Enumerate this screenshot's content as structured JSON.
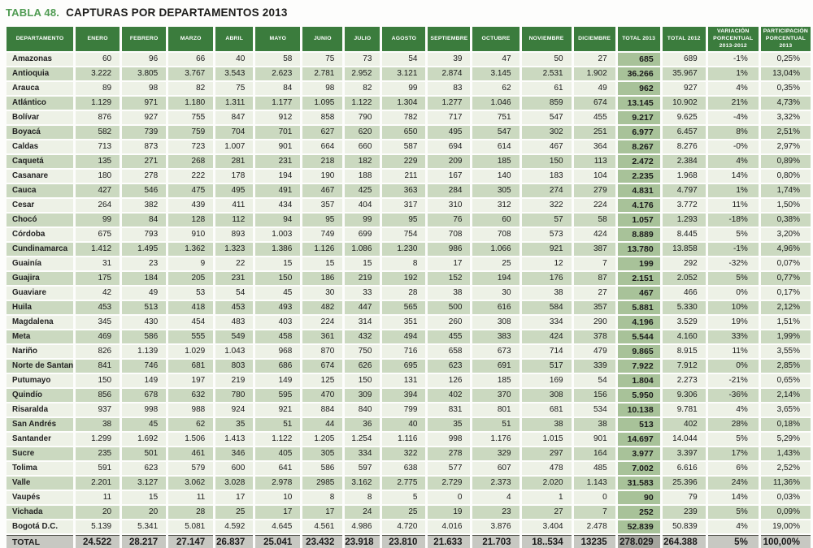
{
  "title": {
    "label": "TABLA 48.",
    "text": "CAPTURAS POR DEPARTAMENTOS 2013"
  },
  "colors": {
    "header_green": "#3b7c3d",
    "title_green": "#4f9b52",
    "row_light": "#edf1e6",
    "row_dark": "#cbd9c0",
    "total2013_col": "#a8c299",
    "total_row_bg": "#c7c8c2",
    "total_row_total2013_bg": "#a3a49d"
  },
  "table": {
    "columns": [
      "DEPARTAMENTO",
      "ENERO",
      "FEBRERO",
      "MARZO",
      "ABRIL",
      "MAYO",
      "JUNIO",
      "JULIO",
      "AGOSTO",
      "SEPTIEMBRE",
      "OCTUBRE",
      "NOVIEMBRE",
      "DICIEMBRE",
      "TOTAL 2013",
      "TOTAL 2012",
      "VARIACIÓN PORCENTUAL 2013-2012",
      "PARTICIPACIÓN PORCENTUAL 2013"
    ],
    "rows": [
      {
        "name": "Amazonas",
        "values": [
          "60",
          "96",
          "66",
          "40",
          "58",
          "75",
          "73",
          "54",
          "39",
          "47",
          "50",
          "27",
          "685",
          "689",
          "-1%",
          "0,25%"
        ]
      },
      {
        "name": "Antioquia",
        "values": [
          "3.222",
          "3.805",
          "3.767",
          "3.543",
          "2.623",
          "2.781",
          "2.952",
          "3.121",
          "2.874",
          "3.145",
          "2.531",
          "1.902",
          "36.266",
          "35.967",
          "1%",
          "13,04%"
        ]
      },
      {
        "name": "Arauca",
        "values": [
          "89",
          "98",
          "82",
          "75",
          "84",
          "98",
          "82",
          "99",
          "83",
          "62",
          "61",
          "49",
          "962",
          "927",
          "4%",
          "0,35%"
        ]
      },
      {
        "name": "Atlántico",
        "values": [
          "1.129",
          "971",
          "1.180",
          "1.311",
          "1.177",
          "1.095",
          "1.122",
          "1.304",
          "1.277",
          "1.046",
          "859",
          "674",
          "13.145",
          "10.902",
          "21%",
          "4,73%"
        ]
      },
      {
        "name": "Bolívar",
        "values": [
          "876",
          "927",
          "755",
          "847",
          "912",
          "858",
          "790",
          "782",
          "717",
          "751",
          "547",
          "455",
          "9.217",
          "9.625",
          "-4%",
          "3,32%"
        ]
      },
      {
        "name": "Boyacá",
        "values": [
          "582",
          "739",
          "759",
          "704",
          "701",
          "627",
          "620",
          "650",
          "495",
          "547",
          "302",
          "251",
          "6.977",
          "6.457",
          "8%",
          "2,51%"
        ]
      },
      {
        "name": "Caldas",
        "values": [
          "713",
          "873",
          "723",
          "1.007",
          "901",
          "664",
          "660",
          "587",
          "694",
          "614",
          "467",
          "364",
          "8.267",
          "8.276",
          "-0%",
          "2,97%"
        ]
      },
      {
        "name": "Caquetá",
        "values": [
          "135",
          "271",
          "268",
          "281",
          "231",
          "218",
          "182",
          "229",
          "209",
          "185",
          "150",
          "113",
          "2.472",
          "2.384",
          "4%",
          "0,89%"
        ]
      },
      {
        "name": "Casanare",
        "values": [
          "180",
          "278",
          "222",
          "178",
          "194",
          "190",
          "188",
          "211",
          "167",
          "140",
          "183",
          "104",
          "2.235",
          "1.968",
          "14%",
          "0,80%"
        ]
      },
      {
        "name": "Cauca",
        "values": [
          "427",
          "546",
          "475",
          "495",
          "491",
          "467",
          "425",
          "363",
          "284",
          "305",
          "274",
          "279",
          "4.831",
          "4.797",
          "1%",
          "1,74%"
        ]
      },
      {
        "name": "Cesar",
        "values": [
          "264",
          "382",
          "439",
          "411",
          "434",
          "357",
          "404",
          "317",
          "310",
          "312",
          "322",
          "224",
          "4.176",
          "3.772",
          "11%",
          "1,50%"
        ]
      },
      {
        "name": "Chocó",
        "values": [
          "99",
          "84",
          "128",
          "112",
          "94",
          "95",
          "99",
          "95",
          "76",
          "60",
          "57",
          "58",
          "1.057",
          "1.293",
          "-18%",
          "0,38%"
        ]
      },
      {
        "name": "Córdoba",
        "values": [
          "675",
          "793",
          "910",
          "893",
          "1.003",
          "749",
          "699",
          "754",
          "708",
          "708",
          "573",
          "424",
          "8.889",
          "8.445",
          "5%",
          "3,20%"
        ]
      },
      {
        "name": "Cundinamarca",
        "values": [
          "1.412",
          "1.495",
          "1.362",
          "1.323",
          "1.386",
          "1.126",
          "1.086",
          "1.230",
          "986",
          "1.066",
          "921",
          "387",
          "13.780",
          "13.858",
          "-1%",
          "4,96%"
        ]
      },
      {
        "name": "Guainía",
        "values": [
          "31",
          "23",
          "9",
          "22",
          "15",
          "15",
          "15",
          "8",
          "17",
          "25",
          "12",
          "7",
          "199",
          "292",
          "-32%",
          "0,07%"
        ]
      },
      {
        "name": "Guajira",
        "values": [
          "175",
          "184",
          "205",
          "231",
          "150",
          "186",
          "219",
          "192",
          "152",
          "194",
          "176",
          "87",
          "2.151",
          "2.052",
          "5%",
          "0,77%"
        ]
      },
      {
        "name": "Guaviare",
        "values": [
          "42",
          "49",
          "53",
          "54",
          "45",
          "30",
          "33",
          "28",
          "38",
          "30",
          "38",
          "27",
          "467",
          "466",
          "0%",
          "0,17%"
        ]
      },
      {
        "name": "Huila",
        "values": [
          "453",
          "513",
          "418",
          "453",
          "493",
          "482",
          "447",
          "565",
          "500",
          "616",
          "584",
          "357",
          "5.881",
          "5.330",
          "10%",
          "2,12%"
        ]
      },
      {
        "name": "Magdalena",
        "values": [
          "345",
          "430",
          "454",
          "483",
          "403",
          "224",
          "314",
          "351",
          "260",
          "308",
          "334",
          "290",
          "4.196",
          "3.529",
          "19%",
          "1,51%"
        ]
      },
      {
        "name": "Meta",
        "values": [
          "469",
          "586",
          "555",
          "549",
          "458",
          "361",
          "432",
          "494",
          "455",
          "383",
          "424",
          "378",
          "5.544",
          "4.160",
          "33%",
          "1,99%"
        ]
      },
      {
        "name": "Nariño",
        "values": [
          "826",
          "1.139",
          "1.029",
          "1.043",
          "968",
          "870",
          "750",
          "716",
          "658",
          "673",
          "714",
          "479",
          "9.865",
          "8.915",
          "11%",
          "3,55%"
        ]
      },
      {
        "name": "Norte de Santander",
        "values": [
          "841",
          "746",
          "681",
          "803",
          "686",
          "674",
          "626",
          "695",
          "623",
          "691",
          "517",
          "339",
          "7.922",
          "7.912",
          "0%",
          "2,85%"
        ]
      },
      {
        "name": "Putumayo",
        "values": [
          "150",
          "149",
          "197",
          "219",
          "149",
          "125",
          "150",
          "131",
          "126",
          "185",
          "169",
          "54",
          "1.804",
          "2.273",
          "-21%",
          "0,65%"
        ]
      },
      {
        "name": "Quindío",
        "values": [
          "856",
          "678",
          "632",
          "780",
          "595",
          "470",
          "309",
          "394",
          "402",
          "370",
          "308",
          "156",
          "5.950",
          "9.306",
          "-36%",
          "2,14%"
        ]
      },
      {
        "name": "Risaralda",
        "values": [
          "937",
          "998",
          "988",
          "924",
          "921",
          "884",
          "840",
          "799",
          "831",
          "801",
          "681",
          "534",
          "10.138",
          "9.781",
          "4%",
          "3,65%"
        ]
      },
      {
        "name": "San Andrés",
        "values": [
          "38",
          "45",
          "62",
          "35",
          "51",
          "44",
          "36",
          "40",
          "35",
          "51",
          "38",
          "38",
          "513",
          "402",
          "28%",
          "0,18%"
        ]
      },
      {
        "name": "Santander",
        "values": [
          "1.299",
          "1.692",
          "1.506",
          "1.413",
          "1.122",
          "1.205",
          "1.254",
          "1.116",
          "998",
          "1.176",
          "1.015",
          "901",
          "14.697",
          "14.044",
          "5%",
          "5,29%"
        ]
      },
      {
        "name": "Sucre",
        "values": [
          "235",
          "501",
          "461",
          "346",
          "405",
          "305",
          "334",
          "322",
          "278",
          "329",
          "297",
          "164",
          "3.977",
          "3.397",
          "17%",
          "1,43%"
        ]
      },
      {
        "name": "Tolima",
        "values": [
          "591",
          "623",
          "579",
          "600",
          "641",
          "586",
          "597",
          "638",
          "577",
          "607",
          "478",
          "485",
          "7.002",
          "6.616",
          "6%",
          "2,52%"
        ]
      },
      {
        "name": "Valle",
        "values": [
          "2.201",
          "3.127",
          "3.062",
          "3.028",
          "2.978",
          "2985",
          "3.162",
          "2.775",
          "2.729",
          "2.373",
          "2.020",
          "1.143",
          "31.583",
          "25.396",
          "24%",
          "11,36%"
        ]
      },
      {
        "name": "Vaupés",
        "values": [
          "11",
          "15",
          "11",
          "17",
          "10",
          "8",
          "8",
          "5",
          "0",
          "4",
          "1",
          "0",
          "90",
          "79",
          "14%",
          "0,03%"
        ]
      },
      {
        "name": "Vichada",
        "values": [
          "20",
          "20",
          "28",
          "25",
          "17",
          "17",
          "24",
          "25",
          "19",
          "23",
          "27",
          "7",
          "252",
          "239",
          "5%",
          "0,09%"
        ]
      },
      {
        "name": "Bogotá D.C.",
        "values": [
          "5.139",
          "5.341",
          "5.081",
          "4.592",
          "4.645",
          "4.561",
          "4.986",
          "4.720",
          "4.016",
          "3.876",
          "3.404",
          "2.478",
          "52.839",
          "50.839",
          "4%",
          "19,00%"
        ]
      }
    ],
    "total_row": {
      "name": "TOTAL",
      "values": [
        "24.522",
        "28.217",
        "27.147",
        "26.837",
        "25.041",
        "23.432",
        "23.918",
        "23.810",
        "21.633",
        "21.703",
        "18..534",
        "13235",
        "278.029",
        "264.388",
        "5%",
        "100,00%"
      ]
    }
  }
}
